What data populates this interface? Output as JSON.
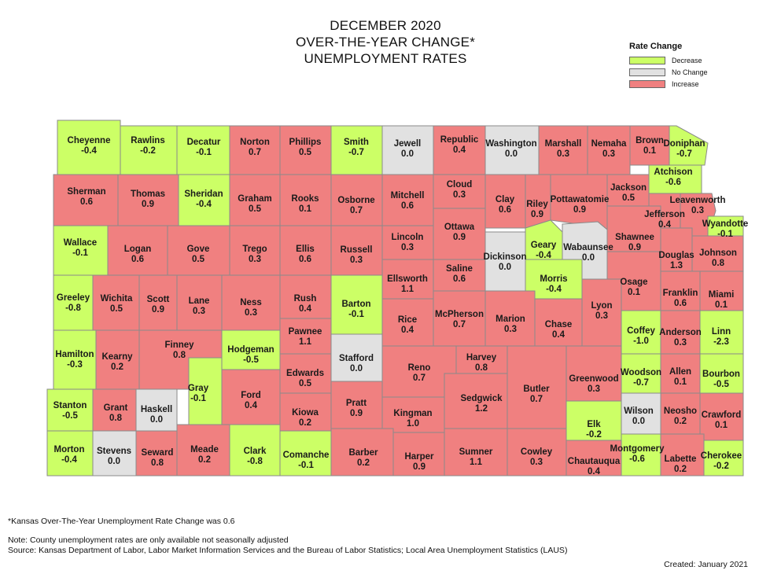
{
  "title": [
    "DECEMBER 2020",
    "OVER-THE-YEAR CHANGE*",
    "UNEMPLOYMENT RATES"
  ],
  "legend": {
    "title": "Rate Change",
    "items": [
      {
        "key": "decrease",
        "label": "Decrease",
        "color": "#ccff66"
      },
      {
        "key": "none",
        "label": "No Change",
        "color": "#e1e1e1"
      },
      {
        "key": "increase",
        "label": "Increase",
        "color": "#f08080"
      }
    ]
  },
  "colors": {
    "decrease": "#ccff66",
    "none": "#e1e1e1",
    "increase": "#f08080",
    "border": "#8a8a8a"
  },
  "counties": [
    {
      "name": "Cheyenne",
      "value": "-0.4",
      "change": "decrease"
    },
    {
      "name": "Rawlins",
      "value": "-0.2",
      "change": "decrease"
    },
    {
      "name": "Decatur",
      "value": "-0.1",
      "change": "decrease"
    },
    {
      "name": "Norton",
      "value": "0.7",
      "change": "increase"
    },
    {
      "name": "Phillips",
      "value": "0.5",
      "change": "increase"
    },
    {
      "name": "Smith",
      "value": "-0.7",
      "change": "decrease"
    },
    {
      "name": "Jewell",
      "value": "0.0",
      "change": "none"
    },
    {
      "name": "Republic",
      "value": "0.4",
      "change": "increase"
    },
    {
      "name": "Washington",
      "value": "0.0",
      "change": "none"
    },
    {
      "name": "Marshall",
      "value": "0.3",
      "change": "increase"
    },
    {
      "name": "Nemaha",
      "value": "0.3",
      "change": "increase"
    },
    {
      "name": "Brown",
      "value": "0.1",
      "change": "increase"
    },
    {
      "name": "Doniphan",
      "value": "-0.7",
      "change": "decrease"
    },
    {
      "name": "Atchison",
      "value": "-0.6",
      "change": "decrease"
    },
    {
      "name": "Sherman",
      "value": "0.6",
      "change": "increase"
    },
    {
      "name": "Thomas",
      "value": "0.9",
      "change": "increase"
    },
    {
      "name": "Sheridan",
      "value": "-0.4",
      "change": "decrease"
    },
    {
      "name": "Graham",
      "value": "0.5",
      "change": "increase"
    },
    {
      "name": "Rooks",
      "value": "0.1",
      "change": "increase"
    },
    {
      "name": "Osborne",
      "value": "0.7",
      "change": "increase"
    },
    {
      "name": "Mitchell",
      "value": "0.6",
      "change": "increase"
    },
    {
      "name": "Cloud",
      "value": "0.3",
      "change": "increase"
    },
    {
      "name": "Clay",
      "value": "0.6",
      "change": "increase"
    },
    {
      "name": "Riley",
      "value": "0.9",
      "change": "increase"
    },
    {
      "name": "Pottawatomie",
      "value": "0.9",
      "change": "increase"
    },
    {
      "name": "Jackson",
      "value": "0.5",
      "change": "increase"
    },
    {
      "name": "Jefferson",
      "value": "0.4",
      "change": "increase"
    },
    {
      "name": "Leavenworth",
      "value": "0.3",
      "change": "increase"
    },
    {
      "name": "Wyandotte",
      "value": "-0.1",
      "change": "decrease"
    },
    {
      "name": "Wallace",
      "value": "-0.1",
      "change": "decrease"
    },
    {
      "name": "Logan",
      "value": "0.6",
      "change": "increase"
    },
    {
      "name": "Gove",
      "value": "0.5",
      "change": "increase"
    },
    {
      "name": "Trego",
      "value": "0.3",
      "change": "increase"
    },
    {
      "name": "Ellis",
      "value": "0.6",
      "change": "increase"
    },
    {
      "name": "Russell",
      "value": "0.3",
      "change": "increase"
    },
    {
      "name": "Lincoln",
      "value": "0.3",
      "change": "increase"
    },
    {
      "name": "Ottawa",
      "value": "0.9",
      "change": "increase"
    },
    {
      "name": "Dickinson",
      "value": "0.0",
      "change": "none"
    },
    {
      "name": "Geary",
      "value": "-0.4",
      "change": "decrease"
    },
    {
      "name": "Wabaunsee",
      "value": "0.0",
      "change": "none"
    },
    {
      "name": "Shawnee",
      "value": "0.9",
      "change": "increase"
    },
    {
      "name": "Douglas",
      "value": "1.3",
      "change": "increase"
    },
    {
      "name": "Johnson",
      "value": "0.8",
      "change": "increase"
    },
    {
      "name": "Saline",
      "value": "0.6",
      "change": "increase"
    },
    {
      "name": "Ellsworth",
      "value": "1.1",
      "change": "increase"
    },
    {
      "name": "Morris",
      "value": "-0.4",
      "change": "decrease"
    },
    {
      "name": "Osage",
      "value": "0.1",
      "change": "increase"
    },
    {
      "name": "Franklin",
      "value": "0.6",
      "change": "increase"
    },
    {
      "name": "Miami",
      "value": "0.1",
      "change": "increase"
    },
    {
      "name": "Greeley",
      "value": "-0.8",
      "change": "decrease"
    },
    {
      "name": "Wichita",
      "value": "0.5",
      "change": "increase"
    },
    {
      "name": "Scott",
      "value": "0.9",
      "change": "increase"
    },
    {
      "name": "Lane",
      "value": "0.3",
      "change": "increase"
    },
    {
      "name": "Ness",
      "value": "0.3",
      "change": "increase"
    },
    {
      "name": "Rush",
      "value": "0.4",
      "change": "increase"
    },
    {
      "name": "Barton",
      "value": "-0.1",
      "change": "decrease"
    },
    {
      "name": "Rice",
      "value": "0.4",
      "change": "increase"
    },
    {
      "name": "McPherson",
      "value": "0.7",
      "change": "increase"
    },
    {
      "name": "Marion",
      "value": "0.3",
      "change": "increase"
    },
    {
      "name": "Chase",
      "value": "0.4",
      "change": "increase"
    },
    {
      "name": "Lyon",
      "value": "0.3",
      "change": "increase"
    },
    {
      "name": "Coffey",
      "value": "-1.0",
      "change": "decrease"
    },
    {
      "name": "Anderson",
      "value": "0.3",
      "change": "increase"
    },
    {
      "name": "Linn",
      "value": "-2.3",
      "change": "decrease"
    },
    {
      "name": "Pawnee",
      "value": "1.1",
      "change": "increase"
    },
    {
      "name": "Hamilton",
      "value": "-0.3",
      "change": "decrease"
    },
    {
      "name": "Kearny",
      "value": "0.2",
      "change": "increase"
    },
    {
      "name": "Finney",
      "value": "0.8",
      "change": "increase"
    },
    {
      "name": "Hodgeman",
      "value": "-0.5",
      "change": "decrease"
    },
    {
      "name": "Stafford",
      "value": "0.0",
      "change": "none"
    },
    {
      "name": "Reno",
      "value": "0.7",
      "change": "increase"
    },
    {
      "name": "Harvey",
      "value": "0.8",
      "change": "increase"
    },
    {
      "name": "Edwards",
      "value": "0.5",
      "change": "increase"
    },
    {
      "name": "Butler",
      "value": "0.7",
      "change": "increase"
    },
    {
      "name": "Greenwood",
      "value": "0.3",
      "change": "increase"
    },
    {
      "name": "Woodson",
      "value": "-0.7",
      "change": "decrease"
    },
    {
      "name": "Allen",
      "value": "0.1",
      "change": "increase"
    },
    {
      "name": "Bourbon",
      "value": "-0.5",
      "change": "decrease"
    },
    {
      "name": "Gray",
      "value": "-0.1",
      "change": "decrease"
    },
    {
      "name": "Ford",
      "value": "0.4",
      "change": "increase"
    },
    {
      "name": "Stanton",
      "value": "-0.5",
      "change": "decrease"
    },
    {
      "name": "Grant",
      "value": "0.8",
      "change": "increase"
    },
    {
      "name": "Haskell",
      "value": "0.0",
      "change": "none"
    },
    {
      "name": "Kiowa",
      "value": "0.2",
      "change": "increase"
    },
    {
      "name": "Pratt",
      "value": "0.9",
      "change": "increase"
    },
    {
      "name": "Kingman",
      "value": "1.0",
      "change": "increase"
    },
    {
      "name": "Sedgwick",
      "value": "1.2",
      "change": "increase"
    },
    {
      "name": "Elk",
      "value": "-0.2",
      "change": "decrease"
    },
    {
      "name": "Wilson",
      "value": "0.0",
      "change": "none"
    },
    {
      "name": "Neosho",
      "value": "0.2",
      "change": "increase"
    },
    {
      "name": "Crawford",
      "value": "0.1",
      "change": "increase"
    },
    {
      "name": "Morton",
      "value": "-0.4",
      "change": "decrease"
    },
    {
      "name": "Stevens",
      "value": "0.0",
      "change": "none"
    },
    {
      "name": "Seward",
      "value": "0.8",
      "change": "increase"
    },
    {
      "name": "Meade",
      "value": "0.2",
      "change": "increase"
    },
    {
      "name": "Clark",
      "value": "-0.8",
      "change": "decrease"
    },
    {
      "name": "Comanche",
      "value": "-0.1",
      "change": "decrease"
    },
    {
      "name": "Barber",
      "value": "0.2",
      "change": "increase"
    },
    {
      "name": "Harper",
      "value": "0.9",
      "change": "increase"
    },
    {
      "name": "Sumner",
      "value": "1.1",
      "change": "increase"
    },
    {
      "name": "Cowley",
      "value": "0.3",
      "change": "increase"
    },
    {
      "name": "Chautauqua",
      "value": "0.4",
      "change": "increase"
    },
    {
      "name": "Montgomery",
      "value": "-0.6",
      "change": "decrease"
    },
    {
      "name": "Labette",
      "value": "0.2",
      "change": "increase"
    },
    {
      "name": "Cherokee",
      "value": "-0.2",
      "change": "decrease"
    }
  ],
  "notes": {
    "footnote": "*Kansas Over-The-Year Unemployment Rate Change was 0.6",
    "note": "Note: County unemployment rates are only available not seasonally adjusted",
    "source": "Source: Kansas Department of Labor, Labor Market Information Services and the Bureau of Labor Statistics; Local Area Unemployment Statistics (LAUS)",
    "created": "Created:  January 2021"
  }
}
